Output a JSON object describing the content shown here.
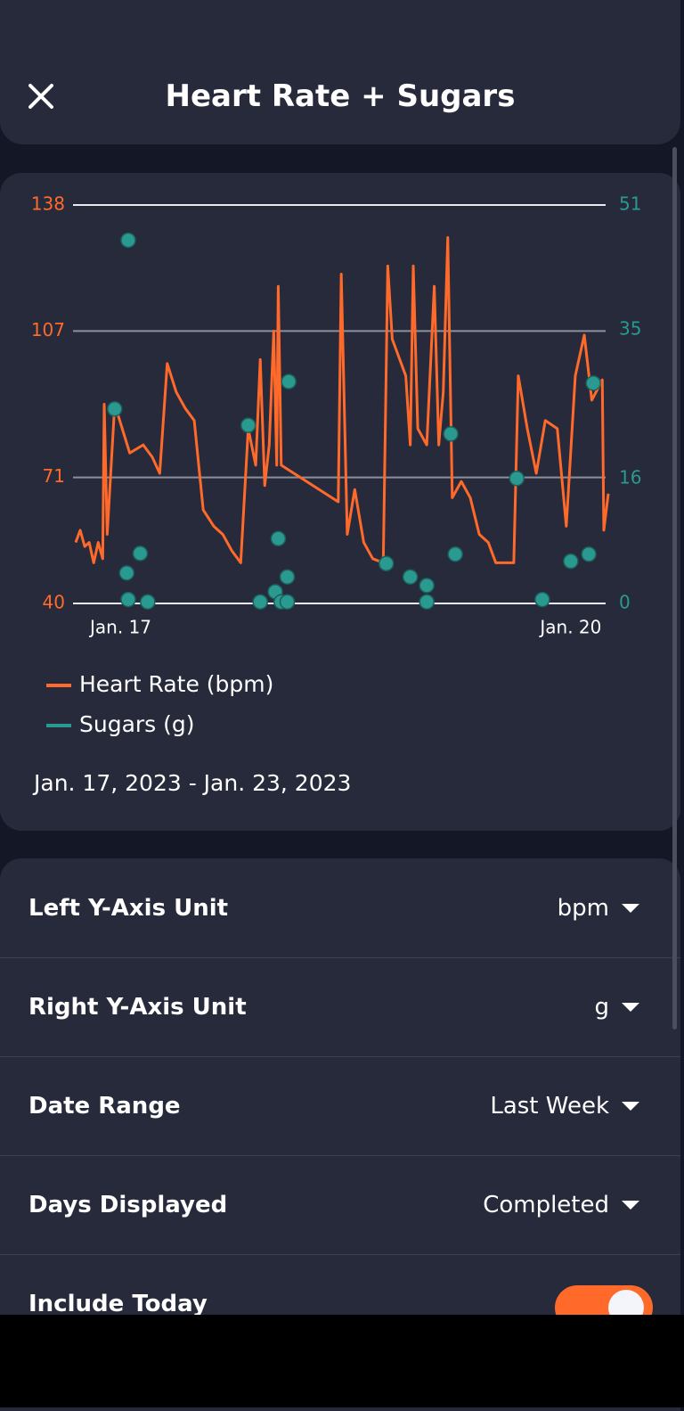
{
  "header": {
    "title": "Heart Rate + Sugars"
  },
  "chart_data": {
    "type": "line",
    "xlim": [
      16.7,
      20.25
    ],
    "xticks": [
      {
        "value": 17,
        "label": "Jan. 17"
      },
      {
        "value": 20,
        "label": "Jan. 20"
      }
    ],
    "ylim": [
      40,
      138
    ],
    "yticks": [
      40,
      71,
      107,
      138
    ],
    "y2lim": [
      0,
      51
    ],
    "y2ticks": [
      0,
      16,
      35,
      51
    ],
    "grid": true,
    "series": [
      {
        "name": "Heart Rate (bpm)",
        "color": "#ff6a2b",
        "type": "line",
        "x": [
          16.7,
          16.73,
          16.76,
          16.79,
          16.82,
          16.85,
          16.88,
          16.89,
          16.91,
          16.96,
          17.06,
          17.15,
          17.21,
          17.26,
          17.31,
          17.37,
          17.43,
          17.49,
          17.55,
          17.62,
          17.68,
          17.74,
          17.8,
          17.85,
          17.9,
          17.93,
          17.96,
          17.99,
          18.02,
          18.04,
          18.05,
          18.07,
          18.45,
          18.47,
          18.51,
          18.56,
          18.62,
          18.68,
          18.75,
          18.78,
          18.81,
          18.9,
          18.93,
          18.95,
          18.98,
          19.04,
          19.09,
          19.12,
          19.15,
          19.18,
          19.21,
          19.27,
          19.33,
          19.39,
          19.45,
          19.5,
          19.56,
          19.62,
          19.65,
          19.71,
          19.77,
          19.83,
          19.91,
          19.97,
          20.03,
          20.09,
          20.14,
          20.21,
          20.22,
          20.25
        ],
        "values": [
          55,
          58,
          54,
          55,
          50,
          55,
          51,
          89,
          57,
          89,
          77,
          79,
          76,
          72,
          99,
          92,
          88,
          85,
          63,
          59,
          57,
          53,
          50,
          83,
          74,
          100,
          69,
          79,
          107,
          74,
          118,
          74,
          65,
          121,
          57,
          68,
          55,
          51,
          50,
          123,
          105,
          96,
          79,
          123,
          83,
          79,
          118,
          79,
          92,
          130,
          66,
          70,
          66,
          57,
          55,
          50,
          50,
          50,
          96,
          83,
          72,
          85,
          83,
          59,
          96,
          106,
          90,
          95,
          58,
          67
        ]
      },
      {
        "name": "Sugars (g)",
        "color": "#2a9a90",
        "type": "scatter",
        "axis": "y2",
        "x": [
          16.96,
          17.04,
          17.05,
          17.05,
          17.13,
          17.18,
          17.85,
          17.93,
          18.03,
          18.05,
          18.07,
          18.11,
          18.11,
          18.12,
          18.77,
          18.93,
          19.04,
          19.04,
          19.2,
          19.23,
          19.64,
          19.81,
          20.0,
          20.12,
          20.15
        ],
        "values": [
          24.9,
          3.9,
          46.5,
          0.5,
          6.4,
          0.2,
          22.8,
          0.2,
          1.5,
          8.3,
          0.2,
          3.4,
          0.2,
          28.4,
          5.1,
          3.4,
          2.3,
          0.2,
          21.7,
          6.3,
          16.0,
          0.5,
          5.4,
          6.3,
          28.2
        ]
      }
    ],
    "date_range": "Jan. 17, 2023 - Jan. 23, 2023"
  },
  "settings": {
    "rows": [
      {
        "label": "Left Y-Axis Unit",
        "value": "bpm"
      },
      {
        "label": "Right Y-Axis Unit",
        "value": "g"
      },
      {
        "label": "Date Range",
        "value": "Last Week"
      },
      {
        "label": "Days Displayed",
        "value": "Completed"
      }
    ],
    "toggle": {
      "label": "Include Today",
      "on": true
    }
  }
}
